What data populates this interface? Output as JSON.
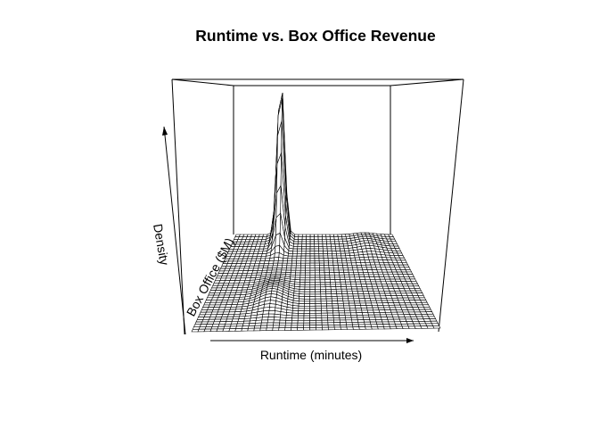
{
  "chart_data": {
    "type": "surface",
    "title": "Runtime vs. Box Office Revenue",
    "xlabel": "Runtime (minutes)",
    "ylabel": "Box Office ($M)",
    "zlabel": "Density",
    "grid": false,
    "peaks": [
      {
        "runtime": 0.29,
        "box_office": 0.97,
        "density": 1.0
      },
      {
        "runtime": 0.3,
        "box_office": 0.35,
        "density": 0.04
      },
      {
        "runtime": 0.82,
        "box_office": 0.9,
        "density": 0.02
      }
    ]
  }
}
